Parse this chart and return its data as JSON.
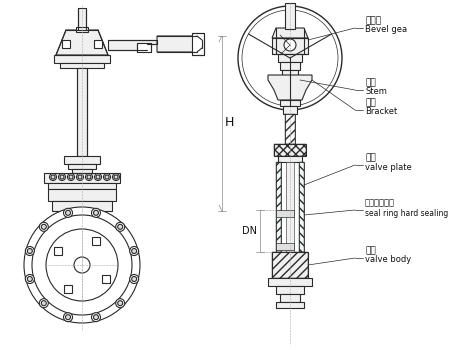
{
  "bg_color": "#ffffff",
  "line_color": "#2a2a2a",
  "labels": {
    "bevel_gear_cn": "伞齿轮",
    "bevel_gear_en": "Bevel gea",
    "stem_cn": "阀杆",
    "stem_en": "Stem",
    "bracket_cn": "支架",
    "bracket_en": "Bracket",
    "valve_plate_cn": "阀板",
    "valve_plate_en": "valve plate",
    "seal_ring_cn": "密封圈硬密封",
    "seal_ring_en": "seal ring hard sealing",
    "valve_body_cn": "阀体",
    "valve_body_en": "valve body"
  },
  "dim_H": "H",
  "dim_DN": "DN",
  "figsize": [
    4.69,
    3.5
  ],
  "dpi": 100
}
